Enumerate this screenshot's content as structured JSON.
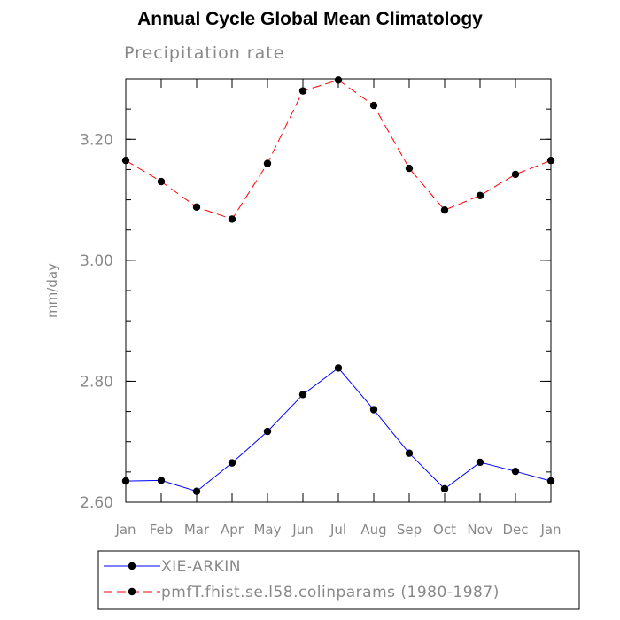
{
  "chart_data": {
    "type": "line",
    "title": "Annual Cycle Global Mean Climatology",
    "subtitle": "Precipitation rate",
    "ylabel": "mm/day",
    "xlabel": "",
    "categories": [
      "Jan",
      "Feb",
      "Mar",
      "Apr",
      "May",
      "Jun",
      "Jul",
      "Aug",
      "Sep",
      "Oct",
      "Nov",
      "Dec",
      "Jan"
    ],
    "ylim": [
      2.6,
      3.3
    ],
    "yticks": [
      {
        "value": 2.6,
        "label": "2.60"
      },
      {
        "value": 2.8,
        "label": "2.80"
      },
      {
        "value": 3.0,
        "label": "3.00"
      },
      {
        "value": 3.2,
        "label": "3.20"
      }
    ],
    "minor_ytick_step": 0.05,
    "grid": false,
    "legend_position": "bottom",
    "series": [
      {
        "name": "XIE-ARKIN",
        "color": "#0000ff",
        "dash": "solid",
        "values": [
          2.635,
          2.636,
          2.618,
          2.665,
          2.717,
          2.778,
          2.822,
          2.753,
          2.681,
          2.622,
          2.666,
          2.651,
          2.635
        ]
      },
      {
        "name": "pmfT.fhist.se.l58.colinparams (1980-1987)",
        "color": "#ff0000",
        "dash": "dashed",
        "values": [
          3.165,
          3.13,
          3.088,
          3.068,
          3.16,
          3.28,
          3.298,
          3.256,
          3.152,
          3.083,
          3.107,
          3.142,
          3.165
        ]
      }
    ]
  }
}
